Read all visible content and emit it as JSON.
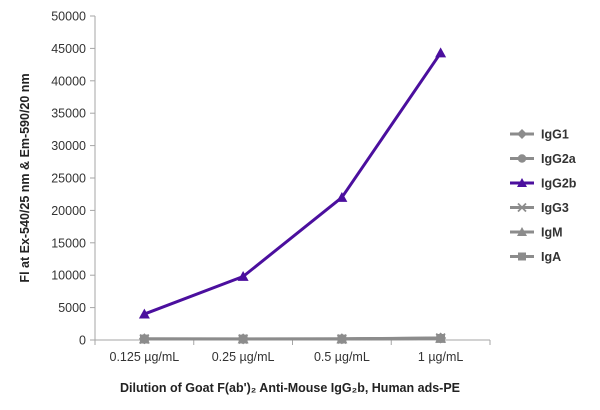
{
  "chart_data": {
    "type": "line",
    "categories": [
      "0.125 µg/mL",
      "0.25 µg/mL",
      "0.5 µg/mL",
      "1 µg/mL"
    ],
    "series": [
      {
        "name": "IgG1",
        "values": [
          200,
          180,
          200,
          300
        ],
        "color": "#8c8c8c",
        "marker": "diamond"
      },
      {
        "name": "IgG2a",
        "values": [
          150,
          150,
          150,
          250
        ],
        "color": "#8c8c8c",
        "marker": "circle"
      },
      {
        "name": "IgG2b",
        "values": [
          4000,
          9800,
          22000,
          44300
        ],
        "color": "#4b0f9e",
        "marker": "triangle"
      },
      {
        "name": "IgG3",
        "values": [
          150,
          150,
          150,
          300
        ],
        "color": "#8c8c8c",
        "marker": "x"
      },
      {
        "name": "IgM",
        "values": [
          150,
          150,
          150,
          250
        ],
        "color": "#8c8c8c",
        "marker": "triangle"
      },
      {
        "name": "IgA",
        "values": [
          150,
          150,
          150,
          250
        ],
        "color": "#8c8c8c",
        "marker": "square"
      }
    ],
    "yticks": [
      "0",
      "5000",
      "10000",
      "15000",
      "20000",
      "25000",
      "30000",
      "35000",
      "40000",
      "45000",
      "50000"
    ],
    "ylim": [
      0,
      50000
    ],
    "ylabel": "Fl at Ex-540/25 nm & Em-590/20 nm",
    "xlabel": "Dilution of Goat F(ab')₂ Anti-Mouse IgG₂b, Human ads-PE",
    "legend_position": "right",
    "grid": false
  }
}
